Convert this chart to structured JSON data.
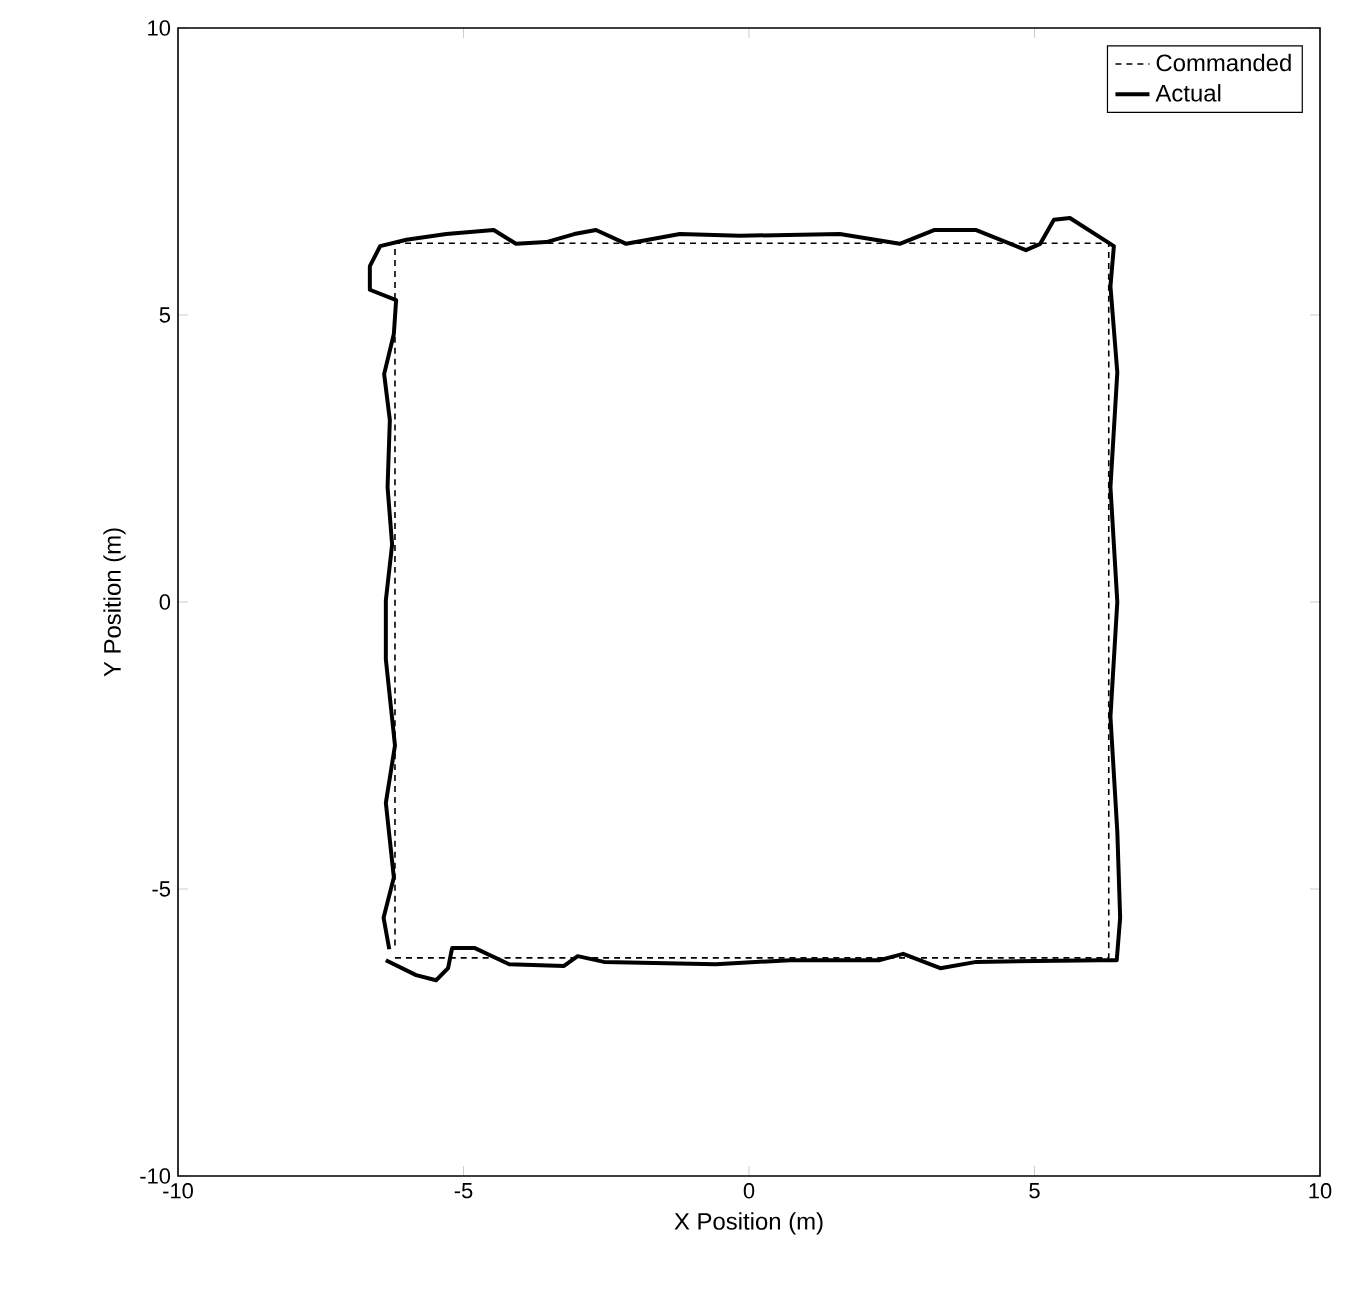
{
  "chart_data": {
    "type": "line",
    "xlabel": "X Position (m)",
    "ylabel": "Y Position (m)",
    "xlim": [
      -10,
      10
    ],
    "ylim": [
      -10,
      10
    ],
    "xticks": [
      -10,
      -5,
      0,
      5,
      10
    ],
    "yticks": [
      -10,
      -5,
      0,
      5,
      10
    ],
    "grid": false,
    "legend": "top right",
    "marker": "none",
    "series": [
      {
        "name": "Commanded",
        "color": "#000000",
        "line_style": "dashed",
        "x": [
          -6.2,
          6.3,
          6.3,
          -6.2,
          -6.2
        ],
        "values": [
          -6.2,
          -6.2,
          6.25,
          6.25,
          -6.05
        ]
      },
      {
        "name": "Actual",
        "color": "#000000",
        "line_style": "solid",
        "x": [
          -6.36,
          -5.83,
          -5.48,
          -5.27,
          -5.2,
          -4.8,
          -4.2,
          -3.24,
          -3.0,
          -2.54,
          -0.58,
          0.72,
          2.29,
          2.7,
          3.35,
          3.98,
          6.15,
          6.44,
          6.5,
          6.45,
          6.33,
          6.45,
          6.33,
          6.45,
          6.33,
          6.39,
          5.62,
          5.34,
          5.1,
          4.85,
          3.98,
          3.24,
          2.64,
          1.59,
          -0.16,
          -1.21,
          -2.15,
          -2.68,
          -3.06,
          -3.55,
          -4.08,
          -4.47,
          -5.3,
          -6.0,
          -6.46,
          -6.64,
          -6.64,
          -6.18,
          -6.22,
          -6.39,
          -6.29,
          -6.33,
          -6.25,
          -6.36,
          -6.36,
          -6.2,
          -6.36,
          -6.22,
          -6.4,
          -6.3
        ],
        "values": [
          -6.24,
          -6.5,
          -6.59,
          -6.38,
          -6.03,
          -6.03,
          -6.31,
          -6.34,
          -6.17,
          -6.27,
          -6.31,
          -6.24,
          -6.24,
          -6.13,
          -6.38,
          -6.27,
          -6.24,
          -6.24,
          -5.5,
          -4,
          -2,
          0,
          2,
          4,
          5.5,
          6.2,
          6.69,
          6.66,
          6.24,
          6.13,
          6.48,
          6.48,
          6.24,
          6.41,
          6.38,
          6.41,
          6.24,
          6.48,
          6.41,
          6.27,
          6.24,
          6.48,
          6.41,
          6.31,
          6.2,
          5.85,
          5.44,
          5.26,
          4.67,
          3.97,
          3.17,
          2,
          1,
          0.03,
          -1,
          -2.5,
          -3.5,
          -4.8,
          -5.5,
          -6.05
        ]
      }
    ]
  }
}
